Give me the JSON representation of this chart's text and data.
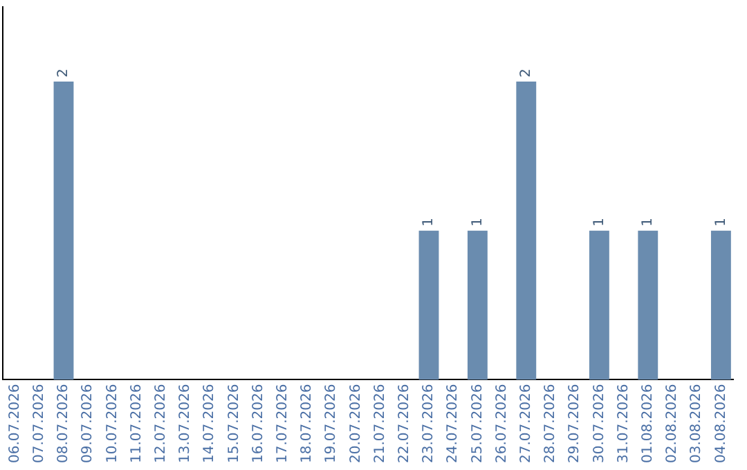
{
  "chart_data": {
    "type": "bar",
    "categories": [
      "06.07.2026",
      "07.07.2026",
      "08.07.2026",
      "09.07.2026",
      "10.07.2026",
      "11.07.2026",
      "12.07.2026",
      "13.07.2026",
      "14.07.2026",
      "15.07.2026",
      "16.07.2026",
      "17.07.2026",
      "18.07.2026",
      "19.07.2026",
      "20.07.2026",
      "21.07.2026",
      "22.07.2026",
      "23.07.2026",
      "24.07.2026",
      "25.07.2026",
      "26.07.2026",
      "27.07.2026",
      "28.07.2026",
      "29.07.2026",
      "30.07.2026",
      "31.07.2026",
      "01.08.2026",
      "02.08.2026",
      "03.08.2026",
      "04.08.2026"
    ],
    "values": [
      null,
      null,
      2,
      null,
      null,
      null,
      null,
      null,
      null,
      null,
      null,
      null,
      null,
      null,
      null,
      null,
      null,
      1,
      null,
      1,
      null,
      2,
      null,
      null,
      1,
      null,
      1,
      null,
      null,
      1
    ],
    "color": "#6a8caf",
    "relative": false,
    "data_labels": true,
    "grid": false,
    "legend": false
  }
}
